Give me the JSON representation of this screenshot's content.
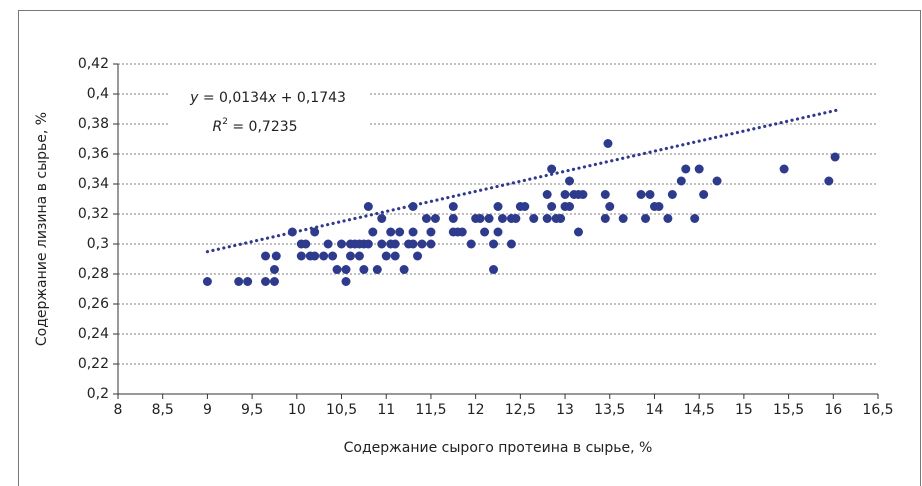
{
  "chart_data": {
    "type": "scatter",
    "x_label": "Содержание сырого протеина в сырье, %",
    "y_label": "Содержание лизина в сырье, %",
    "equation": [
      "y",
      " = 0,0134",
      "x",
      " + 0,1743"
    ],
    "r_squared": [
      "R",
      "2",
      " = 0,7235"
    ],
    "trendline": {
      "slope": 0.0134,
      "intercept": 0.1743,
      "x": [
        9,
        16.05
      ],
      "color": "#2e3a8c"
    },
    "color": "#2e3a8c",
    "grid": true,
    "xlim": [
      8,
      16.5
    ],
    "ylim": [
      0.2,
      0.42
    ],
    "xticks": [
      8,
      {
        "value": 8.5,
        "label": "8,5"
      },
      9,
      {
        "value": 9.5,
        "label": "9,5"
      },
      10,
      {
        "value": 10.5,
        "label": "10,5"
      },
      11,
      {
        "value": 11.5,
        "label": "11,5"
      },
      12,
      {
        "value": 12.5,
        "label": "12,5"
      },
      13,
      {
        "value": 13.5,
        "label": "13,5"
      },
      14,
      {
        "value": 14.5,
        "label": "14,5"
      },
      15,
      {
        "value": 15.5,
        "label": "15,5"
      },
      16,
      {
        "value": 16.5,
        "label": "16,5"
      }
    ],
    "yticks": [
      {
        "value": 0.2,
        "label": "0,2"
      },
      {
        "value": 0.22,
        "label": "0,22"
      },
      {
        "value": 0.24,
        "label": "0,24"
      },
      {
        "value": 0.26,
        "label": "0,26"
      },
      {
        "value": 0.28,
        "label": "0,28"
      },
      {
        "value": 0.3,
        "label": "0,3"
      },
      {
        "value": 0.32,
        "label": "0,32"
      },
      {
        "value": 0.34,
        "label": "0,34"
      },
      {
        "value": 0.36,
        "label": "0,36"
      },
      {
        "value": 0.38,
        "label": "0,38"
      },
      {
        "value": 0.4,
        "label": "0,4"
      },
      {
        "value": 0.42,
        "label": "0,42"
      }
    ],
    "x": [
      9.0,
      9.35,
      9.45,
      9.65,
      9.65,
      9.75,
      9.75,
      9.77,
      9.95,
      10.05,
      10.1,
      10.05,
      10.15,
      10.2,
      10.2,
      10.3,
      10.35,
      10.4,
      10.45,
      10.5,
      10.55,
      10.55,
      10.6,
      10.6,
      10.65,
      10.7,
      10.7,
      10.75,
      10.75,
      10.8,
      10.8,
      10.85,
      10.9,
      10.95,
      10.95,
      11.0,
      11.05,
      11.05,
      11.1,
      11.1,
      11.15,
      11.2,
      11.25,
      11.3,
      11.3,
      11.3,
      11.35,
      11.4,
      11.45,
      11.5,
      11.5,
      11.55,
      11.75,
      11.75,
      11.75,
      11.8,
      11.85,
      11.95,
      12.0,
      12.05,
      12.1,
      12.15,
      12.2,
      12.2,
      12.25,
      12.25,
      12.3,
      12.4,
      12.4,
      12.45,
      12.5,
      12.55,
      12.65,
      12.8,
      12.8,
      12.85,
      12.85,
      12.9,
      12.95,
      13.0,
      13.0,
      13.05,
      13.05,
      13.1,
      13.15,
      13.15,
      13.2,
      13.45,
      13.45,
      13.48,
      13.5,
      13.65,
      13.85,
      13.9,
      13.95,
      14.0,
      14.05,
      14.15,
      14.2,
      14.3,
      14.35,
      14.45,
      14.5,
      14.55,
      14.7,
      15.45,
      15.95,
      16.02
    ],
    "values": [
      0.275,
      0.275,
      0.275,
      0.275,
      0.292,
      0.275,
      0.283,
      0.292,
      0.308,
      0.3,
      0.3,
      0.292,
      0.292,
      0.308,
      0.292,
      0.292,
      0.3,
      0.292,
      0.283,
      0.3,
      0.275,
      0.283,
      0.3,
      0.292,
      0.3,
      0.292,
      0.3,
      0.3,
      0.283,
      0.325,
      0.3,
      0.308,
      0.283,
      0.317,
      0.3,
      0.292,
      0.308,
      0.3,
      0.292,
      0.3,
      0.308,
      0.283,
      0.3,
      0.325,
      0.308,
      0.3,
      0.292,
      0.3,
      0.317,
      0.308,
      0.3,
      0.317,
      0.317,
      0.325,
      0.308,
      0.308,
      0.308,
      0.3,
      0.317,
      0.317,
      0.308,
      0.317,
      0.283,
      0.3,
      0.325,
      0.308,
      0.317,
      0.3,
      0.317,
      0.317,
      0.325,
      0.325,
      0.317,
      0.317,
      0.333,
      0.35,
      0.325,
      0.317,
      0.317,
      0.333,
      0.325,
      0.342,
      0.325,
      0.333,
      0.333,
      0.308,
      0.333,
      0.333,
      0.317,
      0.367,
      0.325,
      0.317,
      0.333,
      0.317,
      0.333,
      0.325,
      0.325,
      0.317,
      0.333,
      0.342,
      0.35,
      0.317,
      0.35,
      0.333,
      0.342,
      0.35,
      0.342,
      0.358
    ]
  }
}
